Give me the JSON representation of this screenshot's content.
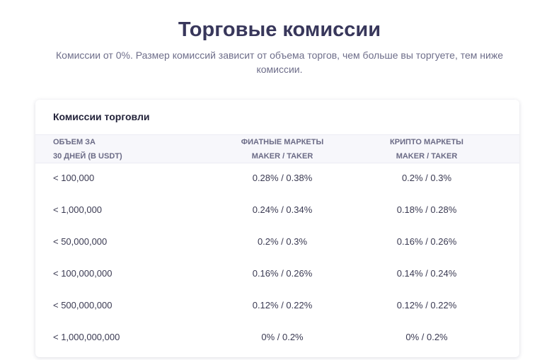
{
  "header": {
    "title": "Торговые комиссии",
    "subtitle": "Комиссии от 0%. Размер комиссий зависит от объема торгов, чем больше вы торгуете, тем ниже комиссии."
  },
  "fees_card": {
    "title": "Комиссии торговли",
    "columns": {
      "volume_line1": "ОБЪЕМ ЗА",
      "volume_line2": "30 ДНЕЙ (В USDT)",
      "fiat_line1": "ФИАТНЫЕ МАРКЕТЫ",
      "fiat_line2": "MAKER / TAKER",
      "crypto_line1": "КРИПТО МАРКЕТЫ",
      "crypto_line2": "MAKER / TAKER"
    },
    "rows": [
      {
        "volume": "< 100,000",
        "fiat": "0.28% / 0.38%",
        "crypto": "0.2% / 0.3%"
      },
      {
        "volume": "< 1,000,000",
        "fiat": "0.24% / 0.34%",
        "crypto": "0.18% / 0.28%"
      },
      {
        "volume": "< 50,000,000",
        "fiat": "0.2% / 0.3%",
        "crypto": "0.16% / 0.26%"
      },
      {
        "volume": "< 100,000,000",
        "fiat": "0.16% / 0.26%",
        "crypto": "0.14% / 0.24%"
      },
      {
        "volume": "< 500,000,000",
        "fiat": "0.12% / 0.22%",
        "crypto": "0.12% / 0.22%"
      },
      {
        "volume": "< 1,000,000,000",
        "fiat": "0% / 0.2%",
        "crypto": "0% / 0.2%"
      }
    ]
  }
}
